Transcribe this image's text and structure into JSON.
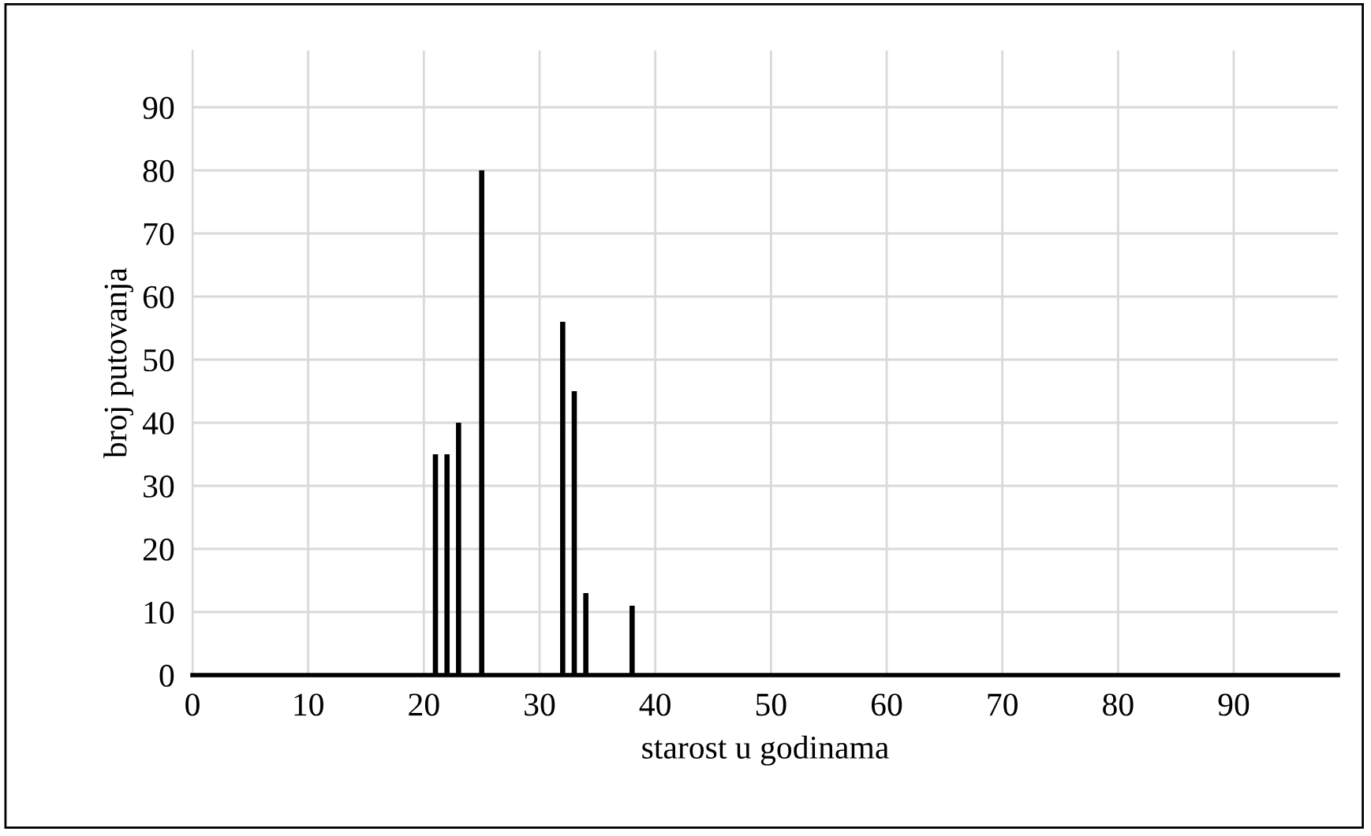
{
  "chart_data": {
    "type": "bar",
    "xlabel": "starost u godinama",
    "ylabel": "broj putovanja",
    "x": [
      21,
      22,
      23,
      25,
      32,
      33,
      34,
      38
    ],
    "values": [
      35,
      35,
      40,
      80,
      56,
      45,
      13,
      11
    ],
    "color": "#000000",
    "xlim": [
      0,
      99
    ],
    "xticks": [
      0,
      10,
      20,
      30,
      40,
      50,
      60,
      70,
      80,
      90
    ],
    "ylim": [
      0,
      99
    ],
    "yticks": [
      0,
      10,
      20,
      30,
      40,
      50,
      60,
      70,
      80,
      90
    ],
    "grid": true,
    "legend": false
  }
}
